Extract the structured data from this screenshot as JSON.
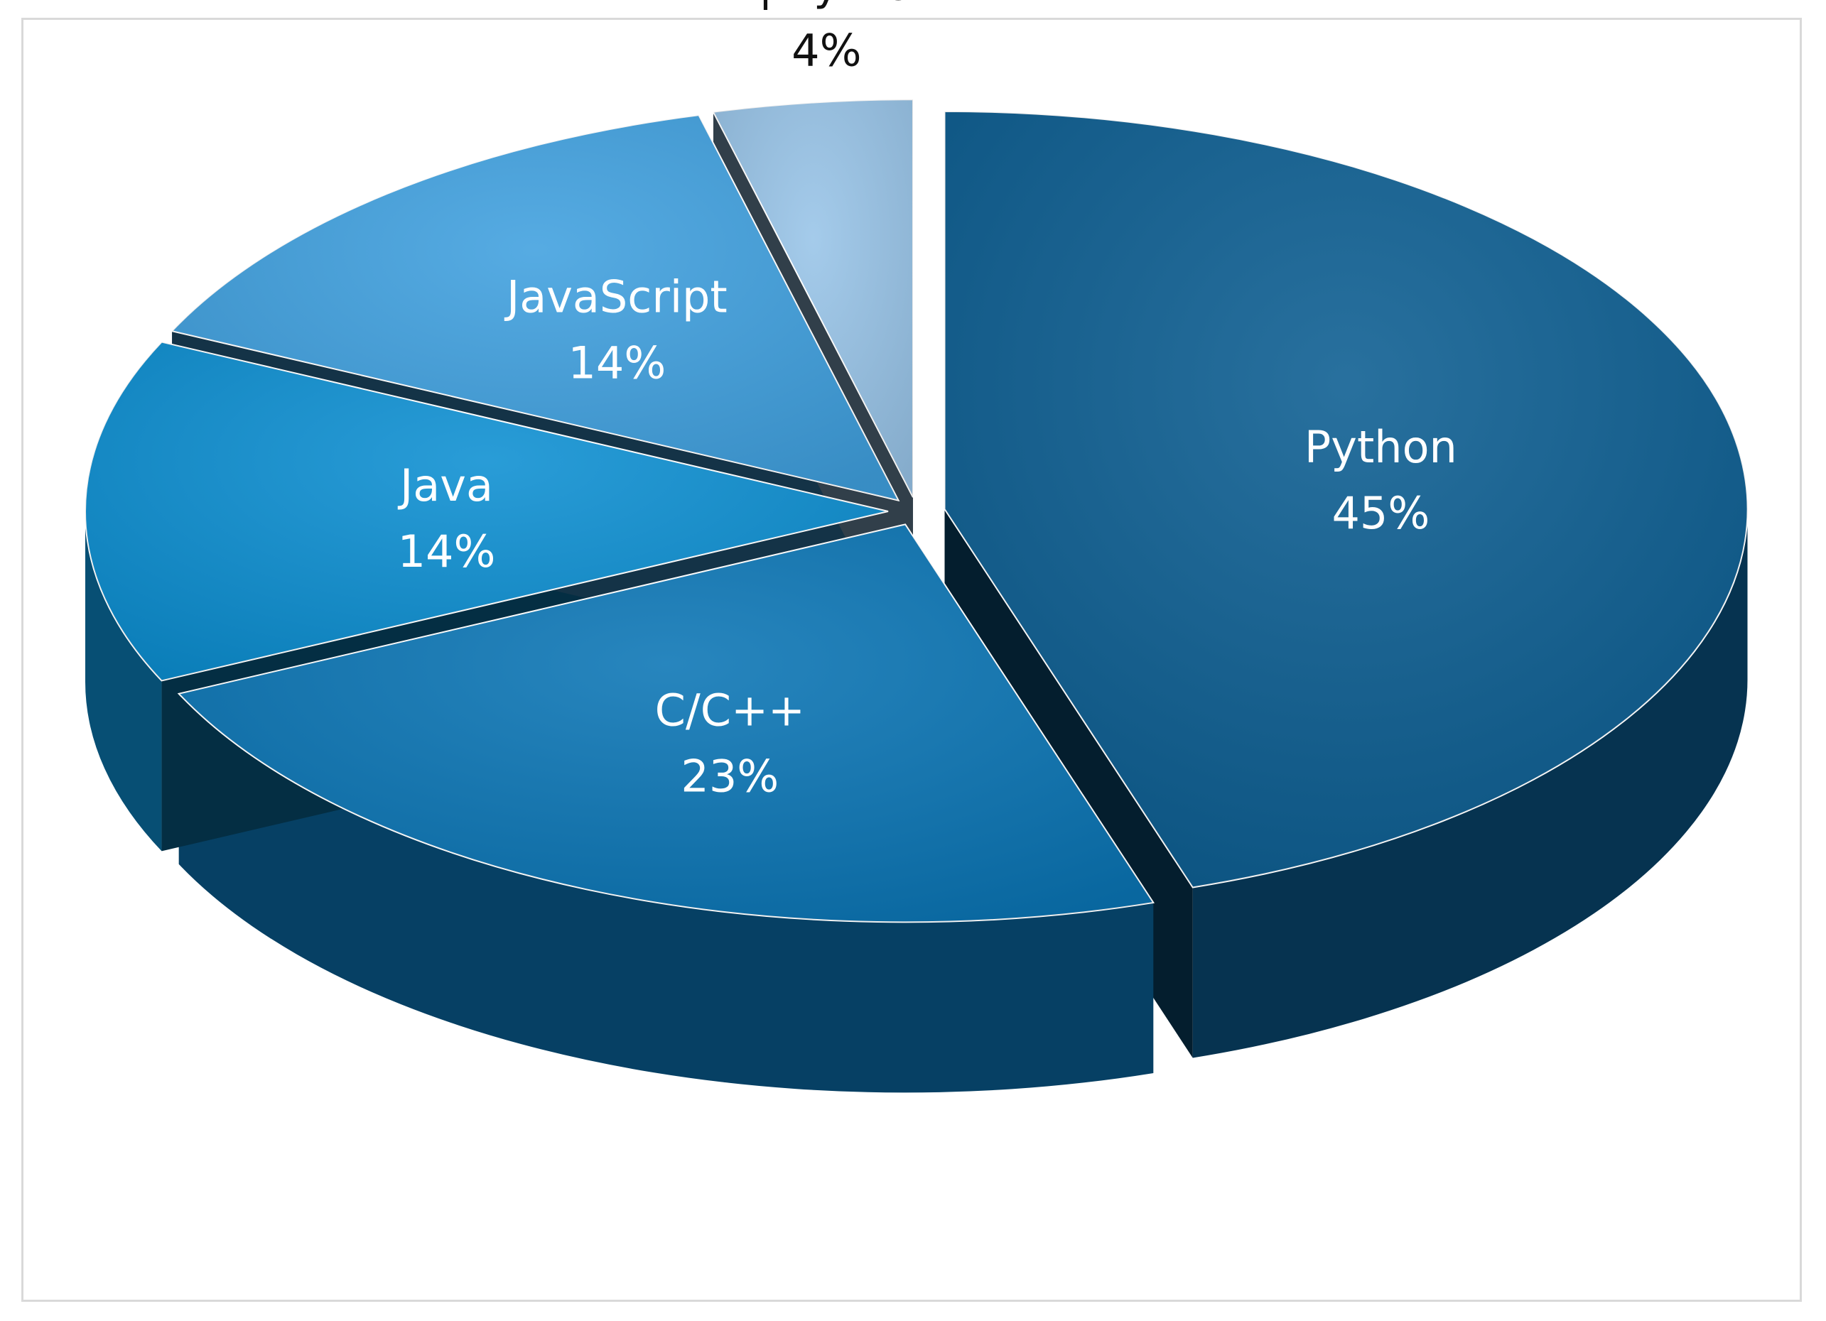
{
  "chart_data": {
    "type": "pie",
    "title": "",
    "slices": [
      {
        "label": "Python",
        "value": 45,
        "value_label": "45%",
        "color": "#0b5d91",
        "label_color": "#ffffff"
      },
      {
        "label": "C/C++",
        "value": 23,
        "value_label": "23%",
        "color": "#0a75b5",
        "label_color": "#ffffff"
      },
      {
        "label": "Java",
        "value": 14,
        "value_label": "14%",
        "color": "#0c8fd2",
        "label_color": "#ffffff"
      },
      {
        "label": "JavaScript",
        "value": 14,
        "value_label": "14%",
        "color": "#3fa0df",
        "label_color": "#ffffff"
      },
      {
        "label": "R | Python",
        "value": 4,
        "value_label": "4%",
        "color": "#98c4e8",
        "label_color": "#111111"
      }
    ],
    "style": "3d-exploded",
    "legend": "none"
  }
}
